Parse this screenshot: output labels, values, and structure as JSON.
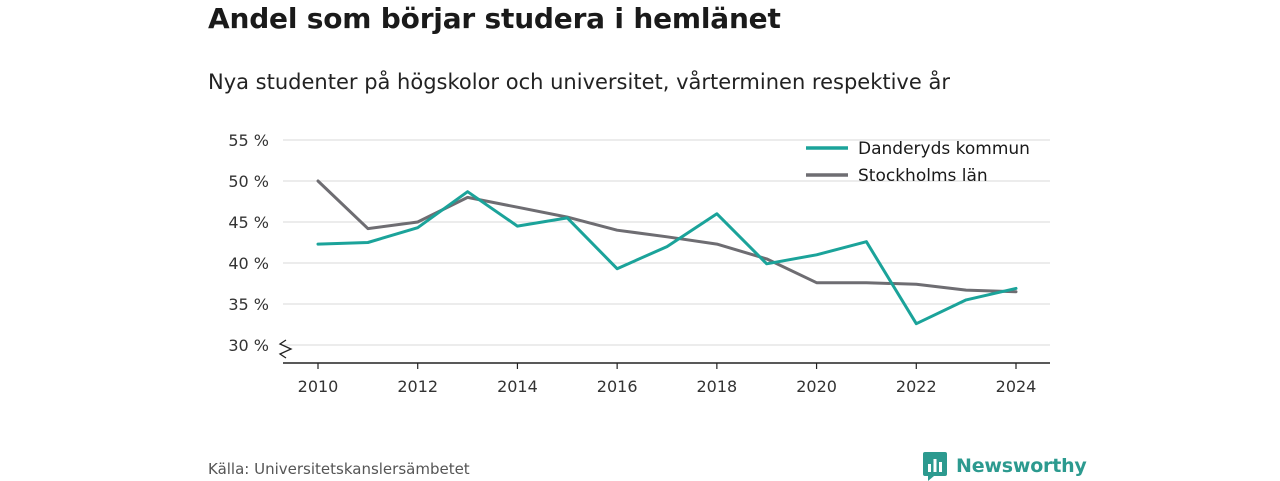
{
  "header": {
    "title": "Andel som börjar studera i hemlänet",
    "subtitle": "Nya studenter på högskolor och universitet, vårterminen respektive år"
  },
  "footer": {
    "source": "Källa: Universitetskanslersämbetet",
    "brand": "Newsworthy"
  },
  "colors": {
    "danderyd": "#1ba39a",
    "stockholm": "#6e6d72",
    "grid": "#d9d9d9",
    "brand": "#2c9a8f"
  },
  "icons": {
    "brand_logo": "bar-chart-bubble-icon",
    "axis_break": "axis-break-icon"
  },
  "chart_data": {
    "type": "line",
    "title": "Andel som börjar studera i hemlänet",
    "subtitle": "Nya studenter på högskolor och universitet, vårterminen respektive år",
    "x": [
      2010,
      2011,
      2012,
      2013,
      2014,
      2015,
      2016,
      2017,
      2018,
      2019,
      2020,
      2021,
      2022,
      2023,
      2024
    ],
    "x_ticks": [
      2010,
      2012,
      2014,
      2016,
      2018,
      2020,
      2022,
      2024
    ],
    "x_tick_labels": [
      "2010",
      "2012",
      "2014",
      "2016",
      "2018",
      "2020",
      "2022",
      "2024"
    ],
    "y_ticks": [
      30,
      35,
      40,
      45,
      50,
      55
    ],
    "y_tick_labels": [
      "30 %",
      "35 %",
      "40 %",
      "45 %",
      "50 %",
      "55 %"
    ],
    "ylim": [
      30,
      55
    ],
    "xlabel": "",
    "ylabel": "",
    "grid": true,
    "legend_position": "top-right",
    "series": [
      {
        "name": "Danderyds kommun",
        "values": [
          42.3,
          42.5,
          44.3,
          48.7,
          44.5,
          45.5,
          39.3,
          42.0,
          46.0,
          39.9,
          41.0,
          42.6,
          32.6,
          35.5,
          36.9
        ]
      },
      {
        "name": "Stockholms län",
        "values": [
          50.0,
          44.2,
          45.0,
          48.0,
          46.8,
          45.6,
          44.0,
          43.2,
          42.3,
          40.5,
          37.6,
          37.6,
          37.4,
          36.7,
          36.5
        ]
      }
    ]
  }
}
